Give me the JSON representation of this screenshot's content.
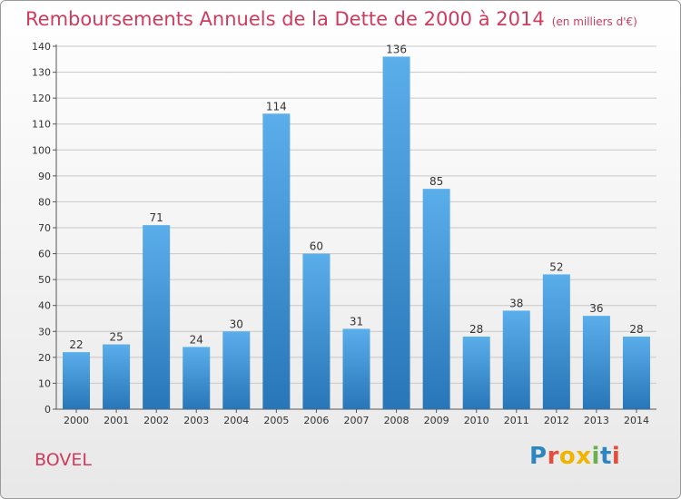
{
  "title": "Remboursements Annuels de la Dette de 2000 à 2014",
  "title_unit": "(en milliers d'€)",
  "commune": "BOVEL",
  "logo": "Proxiti",
  "colors": {
    "title": "#cf3b5d",
    "bar_top": "#5aaeea",
    "bar_bottom": "#2876b8",
    "grid": "#c8c8c8",
    "logo_letters": [
      "#2e86c1",
      "#e84b3c",
      "#f0b400",
      "#f0b400",
      "#6ab04c",
      "#2e86c1",
      "#e84b3c"
    ]
  },
  "chart_data": {
    "type": "bar",
    "categories": [
      "2000",
      "2001",
      "2002",
      "2003",
      "2004",
      "2005",
      "2006",
      "2007",
      "2008",
      "2009",
      "2010",
      "2011",
      "2012",
      "2013",
      "2014"
    ],
    "values": [
      22,
      25,
      71,
      24,
      30,
      114,
      60,
      31,
      136,
      85,
      28,
      38,
      52,
      36,
      28
    ],
    "yticks": [
      0,
      10,
      20,
      30,
      40,
      50,
      60,
      70,
      80,
      90,
      100,
      110,
      120,
      130,
      140
    ],
    "ylim": [
      0,
      140
    ],
    "grid": true,
    "data_labels": true
  }
}
